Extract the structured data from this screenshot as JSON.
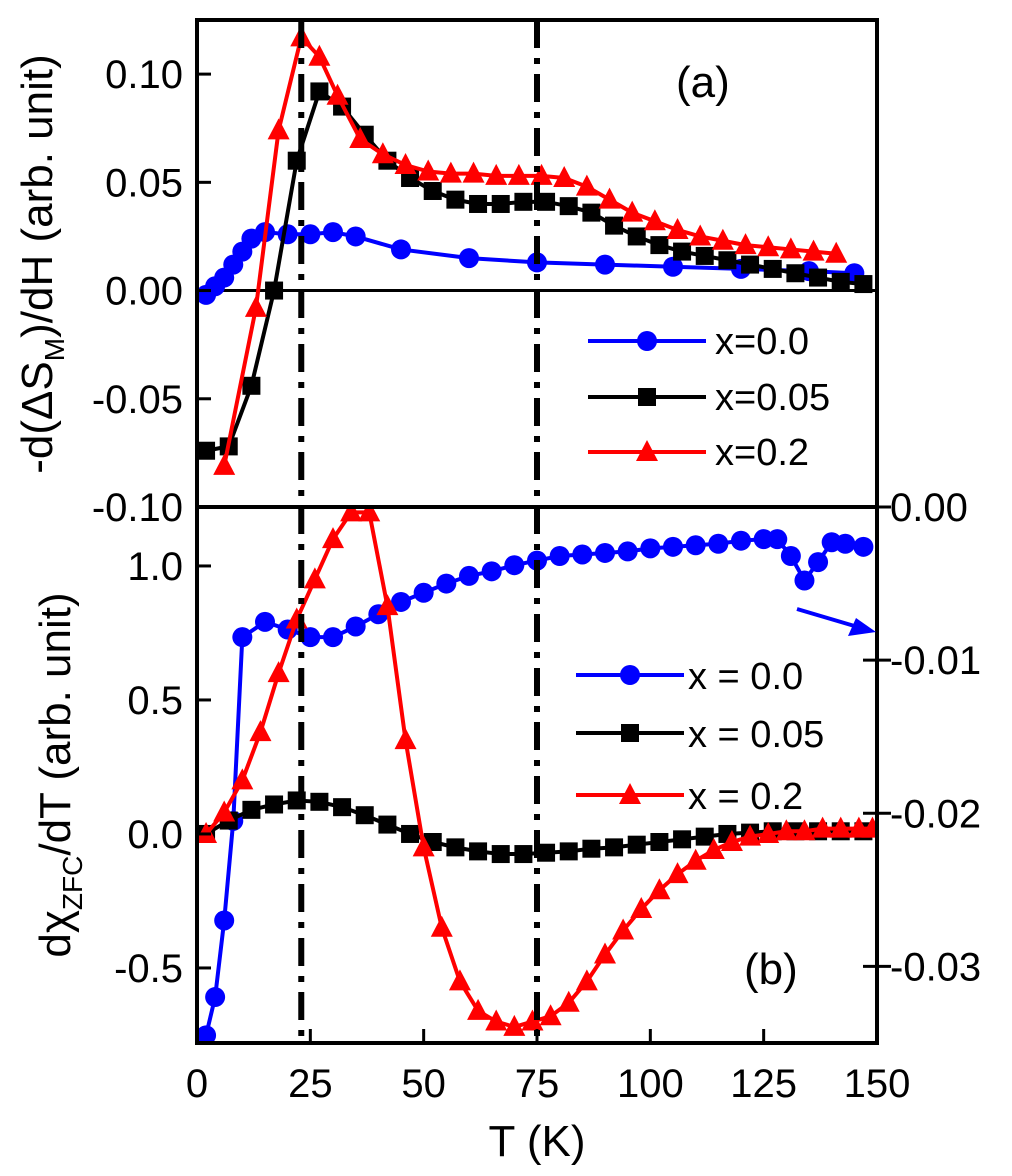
{
  "chart_data": [
    {
      "type": "line",
      "panel_label": "(a)",
      "ylabel": "-d(ΔS_M)/dH (arb. unit)",
      "xlim": [
        0,
        150
      ],
      "ylim": [
        -0.1,
        0.125
      ],
      "yticks": [
        -0.1,
        -0.05,
        0.0,
        0.05,
        0.1
      ],
      "ytick_labels": [
        "-0.10",
        "-0.05",
        "0.00",
        "0.05",
        "0.10"
      ],
      "zero_line": true,
      "legend": [
        "x=0.0",
        "x=0.05",
        "x=0.2"
      ],
      "legend_position": "center-right",
      "series": [
        {
          "name": "x=0.0",
          "color": "#0000ff",
          "marker": "circle",
          "x": [
            2,
            4,
            6,
            8,
            10,
            12,
            15,
            20,
            25,
            30,
            35,
            45,
            60,
            75,
            90,
            105,
            120,
            135,
            145
          ],
          "y": [
            -0.002,
            0.002,
            0.006,
            0.012,
            0.018,
            0.024,
            0.027,
            0.026,
            0.026,
            0.027,
            0.025,
            0.019,
            0.015,
            0.013,
            0.012,
            0.011,
            0.01,
            0.009,
            0.008
          ]
        },
        {
          "name": "x=0.05",
          "color": "#000000",
          "marker": "square",
          "x": [
            2,
            7,
            12,
            17,
            22,
            27,
            32,
            37,
            42,
            47,
            52,
            57,
            62,
            67,
            72,
            77,
            82,
            87,
            92,
            97,
            102,
            107,
            112,
            117,
            122,
            127,
            132,
            137,
            142,
            147
          ],
          "y": [
            -0.074,
            -0.072,
            -0.044,
            0.0,
            0.06,
            0.092,
            0.085,
            0.072,
            0.06,
            0.052,
            0.046,
            0.042,
            0.04,
            0.04,
            0.041,
            0.041,
            0.039,
            0.036,
            0.03,
            0.025,
            0.021,
            0.018,
            0.016,
            0.014,
            0.012,
            0.01,
            0.008,
            0.006,
            0.004,
            0.003
          ]
        },
        {
          "name": "x=0.2",
          "color": "#ff0000",
          "marker": "triangle",
          "x": [
            6,
            13,
            18,
            23,
            27,
            31,
            36,
            41,
            46,
            51,
            56,
            61,
            66,
            71,
            76,
            81,
            86,
            91,
            96,
            101,
            106,
            111,
            116,
            121,
            126,
            131,
            136,
            141
          ],
          "y": [
            -0.081,
            -0.008,
            0.074,
            0.117,
            0.108,
            0.09,
            0.07,
            0.063,
            0.058,
            0.055,
            0.054,
            0.054,
            0.053,
            0.053,
            0.053,
            0.052,
            0.048,
            0.042,
            0.036,
            0.032,
            0.028,
            0.025,
            0.023,
            0.021,
            0.02,
            0.019,
            0.018,
            0.017
          ]
        }
      ]
    },
    {
      "type": "line",
      "panel_label": "(b)",
      "ylabel": "dχ_ZFC/dT (arb. unit)",
      "xlabel": "T (K)",
      "xlim": [
        0,
        150
      ],
      "xticks": [
        0,
        25,
        50,
        75,
        100,
        125,
        150
      ],
      "xtick_labels": [
        "0",
        "25",
        "50",
        "75",
        "100",
        "125",
        "150"
      ],
      "ylim": [
        -0.78,
        1.22
      ],
      "yticks": [
        -0.5,
        0.0,
        0.5,
        1.0
      ],
      "ytick_labels": [
        "-0.5",
        "0.0",
        "0.5",
        "1.0"
      ],
      "right_axis": {
        "applies_to": "x = 0.0",
        "ylim": [
          -0.035,
          0.0
        ],
        "yticks": [
          0.0,
          -0.01,
          -0.02,
          -0.03
        ],
        "ytick_labels": [
          "0.00",
          "-0.01",
          "-0.02",
          "-0.03"
        ]
      },
      "legend": [
        "x = 0.0",
        "x = 0.05",
        "x = 0.2"
      ],
      "legend_position": "center-right",
      "series": [
        {
          "name": "x = 0.0",
          "color": "#0000ff",
          "marker": "circle",
          "axis": "right",
          "x": [
            2,
            4,
            6,
            8,
            10,
            15,
            20,
            25,
            30,
            35,
            40,
            45,
            50,
            55,
            60,
            65,
            70,
            75,
            80,
            85,
            90,
            95,
            100,
            105,
            110,
            115,
            120,
            125,
            128,
            131,
            134,
            137,
            140,
            143,
            147
          ],
          "y": [
            -0.0345,
            -0.032,
            -0.027,
            -0.0205,
            -0.0085,
            -0.0075,
            -0.008,
            -0.0085,
            -0.0085,
            -0.0078,
            -0.007,
            -0.0062,
            -0.0056,
            -0.005,
            -0.0045,
            -0.0042,
            -0.0038,
            -0.0035,
            -0.0032,
            -0.0031,
            -0.003,
            -0.0029,
            -0.0027,
            -0.0026,
            -0.0025,
            -0.0024,
            -0.0022,
            -0.0021,
            -0.0021,
            -0.0032,
            -0.0048,
            -0.0036,
            -0.0023,
            -0.0024,
            -0.0026
          ]
        },
        {
          "name": "x = 0.05",
          "color": "#000000",
          "marker": "square",
          "x": [
            2,
            7,
            12,
            17,
            22,
            27,
            32,
            37,
            42,
            47,
            52,
            57,
            62,
            67,
            72,
            77,
            82,
            87,
            92,
            97,
            102,
            107,
            112,
            117,
            122,
            127,
            132,
            137,
            142,
            147
          ],
          "y": [
            0.0,
            0.05,
            0.09,
            0.11,
            0.125,
            0.12,
            0.1,
            0.07,
            0.035,
            0.0,
            -0.03,
            -0.05,
            -0.065,
            -0.075,
            -0.075,
            -0.07,
            -0.065,
            -0.055,
            -0.05,
            -0.04,
            -0.03,
            -0.02,
            -0.01,
            0.0,
            0.005,
            0.01,
            0.01,
            0.01,
            0.01,
            0.01
          ]
        },
        {
          "name": "x = 0.2",
          "color": "#ff0000",
          "marker": "triangle",
          "x": [
            2,
            6,
            10,
            14,
            18,
            22,
            26,
            30,
            34,
            38,
            42,
            46,
            50,
            54,
            58,
            62,
            66,
            70,
            74,
            78,
            82,
            86,
            90,
            94,
            98,
            102,
            106,
            110,
            114,
            118,
            122,
            126,
            130,
            134,
            138,
            142,
            146,
            149
          ],
          "y": [
            0.0,
            0.08,
            0.2,
            0.38,
            0.6,
            0.8,
            0.95,
            1.1,
            1.2,
            1.2,
            0.85,
            0.35,
            -0.05,
            -0.35,
            -0.55,
            -0.66,
            -0.7,
            -0.72,
            -0.7,
            -0.68,
            -0.63,
            -0.55,
            -0.45,
            -0.36,
            -0.28,
            -0.21,
            -0.15,
            -0.1,
            -0.06,
            -0.03,
            -0.01,
            0.0,
            0.01,
            0.01,
            0.02,
            0.02,
            0.02,
            0.02
          ]
        }
      ]
    }
  ],
  "vertical_lines": [
    23,
    75
  ]
}
